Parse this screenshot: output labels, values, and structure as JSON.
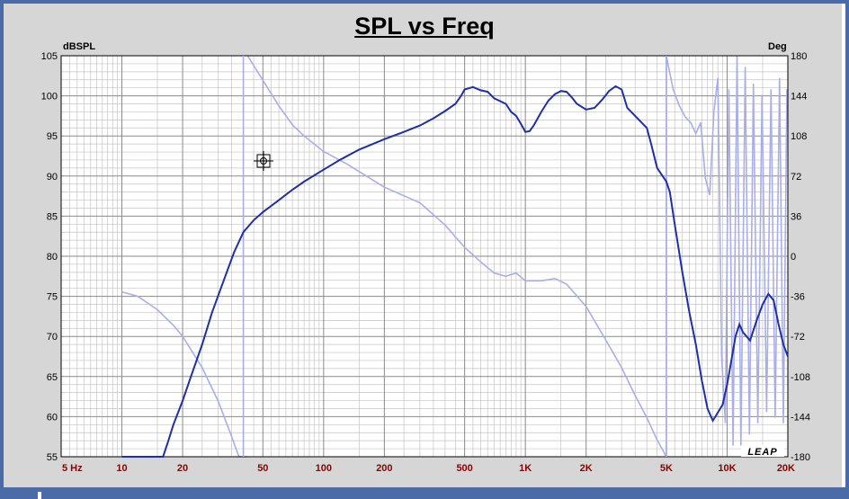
{
  "chart_data": {
    "type": "line",
    "title": "SPL vs Freq",
    "ylabel_left": "dBSPL",
    "ylabel_right": "Deg",
    "xscale": "log",
    "xlim": [
      5,
      20000
    ],
    "ylim_left": [
      55,
      105
    ],
    "ylim_right": [
      -180,
      180
    ],
    "x_ticks": [
      {
        "value": 5,
        "label": "5 Hz"
      },
      {
        "value": 10,
        "label": "10"
      },
      {
        "value": 20,
        "label": "20"
      },
      {
        "value": 50,
        "label": "50"
      },
      {
        "value": 100,
        "label": "100"
      },
      {
        "value": 200,
        "label": "200"
      },
      {
        "value": 500,
        "label": "500"
      },
      {
        "value": 1000,
        "label": "1K"
      },
      {
        "value": 2000,
        "label": "2K"
      },
      {
        "value": 5000,
        "label": "5K"
      },
      {
        "value": 10000,
        "label": "10K"
      },
      {
        "value": 20000,
        "label": "20K"
      }
    ],
    "y_ticks_left": [
      105,
      100,
      95,
      90,
      85,
      80,
      75,
      70,
      65,
      60,
      55
    ],
    "y_ticks_right": [
      180,
      144,
      108,
      72,
      36,
      0,
      -36,
      -72,
      -108,
      -144,
      -180
    ],
    "grid": true,
    "watermark": "LEAP",
    "colors": {
      "spl": "#1f2fa6",
      "phase": "#a9aee8",
      "grid_major": "#8a8a8a",
      "grid_minor": "#c4c4c4",
      "plot_bg": "#ffffff",
      "panel_bg": "#d6d6d6"
    },
    "series": [
      {
        "axis": "left",
        "points": [
          [
            10,
            55
          ],
          [
            16,
            55
          ],
          [
            17,
            57
          ],
          [
            18,
            59
          ],
          [
            20,
            62
          ],
          [
            22,
            65
          ],
          [
            25,
            69
          ],
          [
            28,
            73
          ],
          [
            32,
            77
          ],
          [
            36,
            80.5
          ],
          [
            40,
            83
          ],
          [
            45,
            84.5
          ],
          [
            50,
            85.5
          ],
          [
            60,
            87
          ],
          [
            70,
            88.3
          ],
          [
            80,
            89.3
          ],
          [
            100,
            90.8
          ],
          [
            120,
            92
          ],
          [
            150,
            93.3
          ],
          [
            200,
            94.6
          ],
          [
            250,
            95.5
          ],
          [
            300,
            96.3
          ],
          [
            350,
            97.2
          ],
          [
            400,
            98.1
          ],
          [
            450,
            99
          ],
          [
            480,
            100
          ],
          [
            500,
            100.8
          ],
          [
            550,
            101.1
          ],
          [
            600,
            100.7
          ],
          [
            650,
            100.5
          ],
          [
            700,
            99.7
          ],
          [
            800,
            99
          ],
          [
            850,
            98
          ],
          [
            900,
            97.5
          ],
          [
            950,
            96.5
          ],
          [
            1000,
            95.5
          ],
          [
            1050,
            95.6
          ],
          [
            1100,
            96.3
          ],
          [
            1200,
            98
          ],
          [
            1300,
            99.4
          ],
          [
            1400,
            100.2
          ],
          [
            1500,
            100.6
          ],
          [
            1600,
            100.5
          ],
          [
            1700,
            99.8
          ],
          [
            1800,
            99
          ],
          [
            2000,
            98.3
          ],
          [
            2200,
            98.5
          ],
          [
            2400,
            99.5
          ],
          [
            2600,
            100.6
          ],
          [
            2800,
            101.2
          ],
          [
            3000,
            100.8
          ],
          [
            3200,
            98.5
          ],
          [
            3500,
            97.5
          ],
          [
            4000,
            96
          ],
          [
            4200,
            94
          ],
          [
            4500,
            91
          ],
          [
            5000,
            89.3
          ],
          [
            5200,
            88
          ],
          [
            5500,
            84
          ],
          [
            6000,
            78
          ],
          [
            6500,
            73
          ],
          [
            7000,
            69
          ],
          [
            7500,
            64.5
          ],
          [
            8000,
            61
          ],
          [
            8500,
            59.5
          ],
          [
            9000,
            60.5
          ],
          [
            9500,
            61.5
          ],
          [
            10000,
            64
          ],
          [
            10500,
            67
          ],
          [
            11000,
            70
          ],
          [
            11500,
            71.5
          ],
          [
            12000,
            70.5
          ],
          [
            13000,
            69.5
          ],
          [
            14000,
            72
          ],
          [
            15000,
            74
          ],
          [
            16000,
            75.3
          ],
          [
            17000,
            74.5
          ],
          [
            18000,
            71.5
          ],
          [
            19000,
            69
          ],
          [
            20000,
            67.5
          ]
        ]
      },
      {
        "axis": "right",
        "points": [
          [
            10,
            -32
          ],
          [
            12,
            -36
          ],
          [
            15,
            -48
          ],
          [
            18,
            -62
          ],
          [
            20,
            -72
          ],
          [
            25,
            -100
          ],
          [
            30,
            -130
          ],
          [
            35,
            -162
          ],
          [
            38,
            -180
          ],
          [
            42,
            180
          ],
          [
            50,
            158
          ],
          [
            60,
            135
          ],
          [
            70,
            118
          ],
          [
            80,
            108
          ],
          [
            100,
            94
          ],
          [
            130,
            83
          ],
          [
            150,
            76
          ],
          [
            200,
            62
          ],
          [
            300,
            48
          ],
          [
            400,
            28
          ],
          [
            500,
            8
          ],
          [
            600,
            -5
          ],
          [
            700,
            -15
          ],
          [
            800,
            -18
          ],
          [
            900,
            -15
          ],
          [
            1000,
            -22
          ],
          [
            1200,
            -22
          ],
          [
            1400,
            -20
          ],
          [
            1600,
            -25
          ],
          [
            2000,
            -45
          ],
          [
            2500,
            -75
          ],
          [
            3000,
            -100
          ],
          [
            3500,
            -125
          ],
          [
            4000,
            -145
          ],
          [
            4500,
            -165
          ],
          [
            5000,
            -180
          ]
        ]
      }
    ]
  }
}
